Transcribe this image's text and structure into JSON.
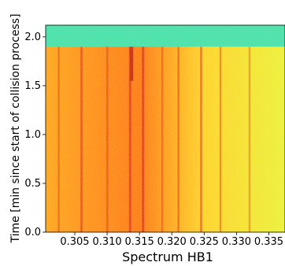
{
  "chart_data": {
    "type": "heatmap",
    "xlabel": "Spectrum HB1",
    "ylabel": "Time [min since start of collision process]",
    "xlim": [
      0.3005,
      0.3375
    ],
    "ylim": [
      0.0,
      2.12
    ],
    "x_ticks": [
      0.305,
      0.31,
      0.315,
      0.32,
      0.325,
      0.33,
      0.335
    ],
    "x_tick_labels": [
      "0.305",
      "0.310",
      "0.315",
      "0.320",
      "0.325",
      "0.330",
      "0.335"
    ],
    "y_ticks": [
      0.0,
      0.5,
      1.0,
      1.5,
      2.0
    ],
    "y_tick_labels": [
      "0.0",
      "0.5",
      "1.0",
      "1.5",
      "2.0"
    ],
    "grid": false,
    "colormap": "jet",
    "top_band": {
      "y_from": 1.9,
      "y_to": 2.12,
      "color": "#3fe0b0"
    },
    "background_gradient": [
      {
        "x": 0.3005,
        "color": "#ff9a10"
      },
      {
        "x": 0.315,
        "color": "#ff6a08"
      },
      {
        "x": 0.325,
        "color": "#ffcf1f"
      },
      {
        "x": 0.3375,
        "color": "#e8f030"
      }
    ],
    "vertical_lines": [
      {
        "x": 0.3025,
        "intensity": 0.4
      },
      {
        "x": 0.306,
        "intensity": 0.7
      },
      {
        "x": 0.31,
        "intensity": 0.5
      },
      {
        "x": 0.3135,
        "intensity": 0.9
      },
      {
        "x": 0.3155,
        "intensity": 1.0
      },
      {
        "x": 0.3185,
        "intensity": 0.4
      },
      {
        "x": 0.321,
        "intensity": 0.5
      },
      {
        "x": 0.3245,
        "intensity": 0.6
      },
      {
        "x": 0.3275,
        "intensity": 0.4
      },
      {
        "x": 0.332,
        "intensity": 0.3
      }
    ],
    "hotspot": {
      "x": 0.3138,
      "y_from": 1.55,
      "y_to": 1.9
    }
  }
}
